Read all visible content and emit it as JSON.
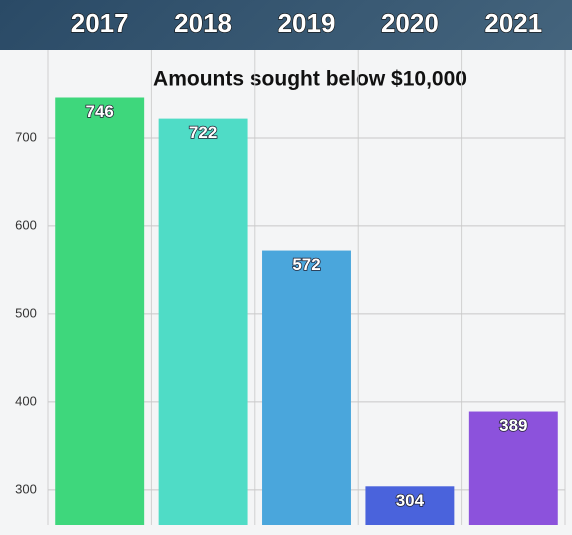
{
  "chart_data": {
    "type": "bar",
    "title": "Amounts sought below $10,000",
    "categories": [
      "2017",
      "2018",
      "2019",
      "2020",
      "2021"
    ],
    "values": [
      746,
      722,
      572,
      304,
      389
    ],
    "colors": [
      "#3ed77c",
      "#4fdcc6",
      "#4aa6dc",
      "#4a63dc",
      "#8c52dc"
    ],
    "ylim": [
      260,
      800
    ],
    "yticks": [
      300,
      400,
      500,
      600,
      700
    ],
    "grid": true
  }
}
